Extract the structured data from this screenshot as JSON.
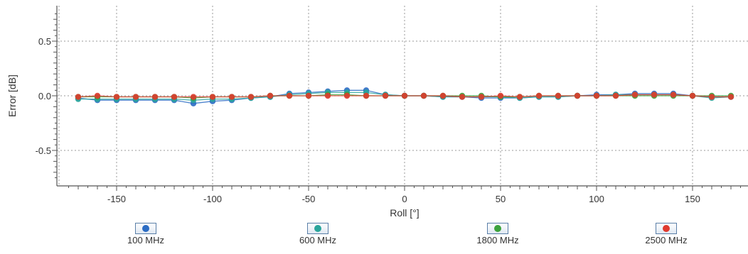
{
  "chart_data": {
    "type": "scatter",
    "xlabel": "Roll [°]",
    "ylabel": "Error [dB]",
    "xlim": [
      -180,
      180
    ],
    "ylim": [
      -0.8,
      0.8
    ],
    "x_ticks": [
      -150,
      -100,
      -50,
      0,
      50,
      100,
      150
    ],
    "y_ticks": [
      0.5,
      0.0,
      -0.5
    ],
    "y_tick_labels": [
      "0.5",
      "0.0",
      "-0.5"
    ],
    "grid": true,
    "legend_position": "bottom",
    "series": [
      {
        "name": "100 MHz",
        "color": "#2b6cc4",
        "x": [
          -170,
          -160,
          -150,
          -140,
          -130,
          -120,
          -110,
          -100,
          -90,
          -80,
          -70,
          -60,
          -50,
          -40,
          -30,
          -20,
          -10,
          0,
          10,
          20,
          30,
          40,
          50,
          60,
          70,
          80,
          90,
          100,
          110,
          120,
          130,
          140,
          150,
          160,
          170
        ],
        "y": [
          -0.02,
          -0.04,
          -0.04,
          -0.04,
          -0.04,
          -0.04,
          -0.07,
          -0.05,
          -0.04,
          -0.02,
          -0.01,
          0.02,
          0.03,
          0.04,
          0.05,
          0.05,
          0.01,
          0.0,
          0.0,
          -0.01,
          -0.01,
          -0.02,
          -0.02,
          -0.02,
          -0.01,
          -0.01,
          0.0,
          0.01,
          0.01,
          0.02,
          0.02,
          0.02,
          0.0,
          -0.01,
          -0.01
        ]
      },
      {
        "name": "600 MHz",
        "color": "#2aa59b",
        "x": [
          -170,
          -160,
          -150,
          -140,
          -130,
          -120,
          -110,
          -100,
          -90,
          -80,
          -70,
          -60,
          -50,
          -40,
          -30,
          -20,
          -10,
          0,
          10,
          20,
          30,
          40,
          50,
          60,
          70,
          80,
          90,
          100,
          110,
          120,
          130,
          140,
          150,
          160,
          170
        ],
        "y": [
          -0.03,
          -0.03,
          -0.03,
          -0.03,
          -0.03,
          -0.03,
          -0.04,
          -0.03,
          -0.03,
          -0.02,
          -0.01,
          0.01,
          0.02,
          0.03,
          0.03,
          0.03,
          0.01,
          0.0,
          0.0,
          -0.01,
          -0.01,
          -0.01,
          -0.01,
          -0.02,
          -0.01,
          -0.01,
          0.0,
          0.0,
          0.01,
          0.01,
          0.01,
          0.01,
          0.0,
          -0.02,
          -0.01
        ]
      },
      {
        "name": "1800 MHz",
        "color": "#3ca23c",
        "x": [
          -170,
          -160,
          -150,
          -140,
          -130,
          -120,
          -110,
          -100,
          -90,
          -80,
          -70,
          -60,
          -50,
          -40,
          -30,
          -20,
          -10,
          0,
          10,
          20,
          30,
          40,
          50,
          60,
          70,
          80,
          90,
          100,
          110,
          120,
          130,
          140,
          150,
          160,
          170
        ],
        "y": [
          -0.01,
          -0.01,
          -0.01,
          -0.01,
          -0.01,
          -0.01,
          -0.02,
          -0.01,
          -0.01,
          -0.01,
          0.0,
          0.0,
          0.0,
          0.01,
          0.01,
          0.0,
          0.0,
          0.0,
          0.0,
          0.0,
          0.0,
          0.0,
          -0.01,
          -0.01,
          0.0,
          0.0,
          0.0,
          0.0,
          0.0,
          0.0,
          0.0,
          0.0,
          0.0,
          0.0,
          0.0
        ]
      },
      {
        "name": "2500 MHz",
        "color": "#e03a2e",
        "x": [
          -170,
          -160,
          -150,
          -140,
          -130,
          -120,
          -110,
          -100,
          -90,
          -80,
          -70,
          -60,
          -50,
          -40,
          -30,
          -20,
          -10,
          0,
          10,
          20,
          30,
          40,
          50,
          60,
          70,
          80,
          90,
          100,
          110,
          120,
          130,
          140,
          150,
          160,
          170
        ],
        "y": [
          -0.01,
          0.0,
          -0.01,
          -0.01,
          -0.01,
          -0.01,
          -0.01,
          -0.01,
          -0.01,
          -0.01,
          0.0,
          0.0,
          0.0,
          0.0,
          0.0,
          0.0,
          0.0,
          0.0,
          0.0,
          0.0,
          -0.01,
          -0.01,
          0.0,
          -0.01,
          0.0,
          0.0,
          0.0,
          0.0,
          0.0,
          0.01,
          0.01,
          0.01,
          0.0,
          -0.01,
          -0.01
        ]
      }
    ]
  },
  "legend": [
    {
      "label": "100 MHz",
      "color": "#2b6cc4"
    },
    {
      "label": "600 MHz",
      "color": "#2aa59b"
    },
    {
      "label": "1800 MHz",
      "color": "#3ca23c"
    },
    {
      "label": "2500 MHz",
      "color": "#e03a2e"
    }
  ]
}
